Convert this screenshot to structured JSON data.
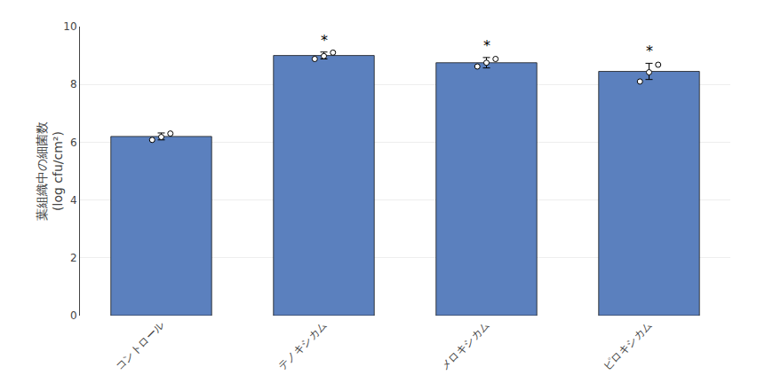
{
  "chart_data": {
    "type": "bar",
    "categories": [
      "コントロール",
      "テノキシカム",
      "メロキシカム",
      "ピロキシカム"
    ],
    "values": [
      6.2,
      9.0,
      8.75,
      8.45
    ],
    "errors": [
      0.12,
      0.12,
      0.18,
      0.28
    ],
    "points": [
      [
        6.08,
        6.18,
        6.3
      ],
      [
        8.88,
        8.98,
        9.1
      ],
      [
        8.62,
        8.75,
        8.88
      ],
      [
        8.1,
        8.42,
        8.68
      ]
    ],
    "color": "#5b80be",
    "ylabel": "葉組織中の細菌数\n(log cfu/cm²)",
    "ylim": [
      0,
      10
    ],
    "yticks": [
      0,
      2,
      4,
      6,
      8,
      10
    ],
    "grid": true,
    "annotations": [
      {
        "text": "*",
        "category": "テノキシカム"
      },
      {
        "text": "*",
        "category": "メロキシカム"
      },
      {
        "text": "*",
        "category": "ピロキシカム"
      }
    ]
  }
}
